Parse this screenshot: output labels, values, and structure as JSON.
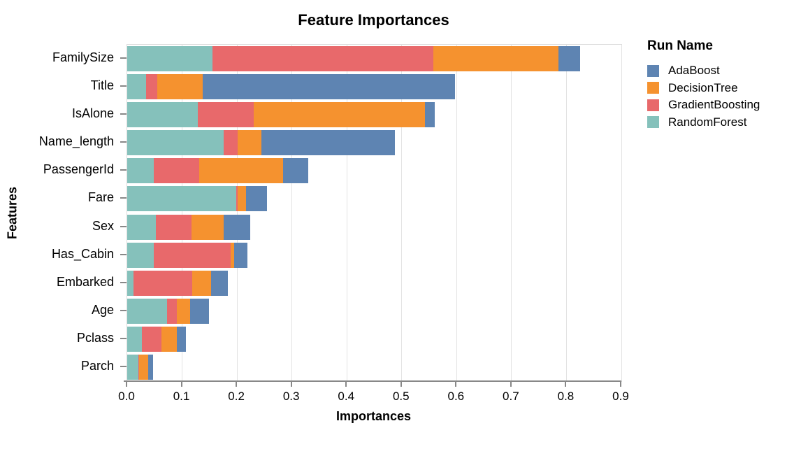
{
  "title": "Feature Importances",
  "x_axis": {
    "label": "Importances",
    "tick_labels": [
      "0.0",
      "0.1",
      "0.2",
      "0.3",
      "0.4",
      "0.5",
      "0.6",
      "0.7",
      "0.8",
      "0.9"
    ],
    "min": 0.0,
    "max": 0.9
  },
  "y_axis": {
    "label": "Features"
  },
  "legend": {
    "title": "Run Name",
    "entries": [
      {
        "label": "AdaBoost",
        "color": "#5e84b2"
      },
      {
        "label": "DecisionTree",
        "color": "#f5922f"
      },
      {
        "label": "GradientBoosting",
        "color": "#e8696b"
      },
      {
        "label": "RandomForest",
        "color": "#85c1bb"
      }
    ]
  },
  "colors": {
    "AdaBoost": "#5e84b2",
    "DecisionTree": "#f5922f",
    "GradientBoosting": "#e8696b",
    "RandomForest": "#85c1bb",
    "gridline": "#e3e3e3",
    "axis_line": "#888888",
    "plot_border": "#dddddd"
  },
  "chart_data": {
    "type": "bar",
    "orientation": "horizontal",
    "stacked": true,
    "title": "Feature Importances",
    "xlabel": "Importances",
    "ylabel": "Features",
    "xlim": [
      0.0,
      0.9
    ],
    "grid": true,
    "legend_position": "right",
    "legend_title": "Run Name",
    "categories": [
      "FamilySize",
      "Title",
      "IsAlone",
      "Name_length",
      "PassengerId",
      "Fare",
      "Sex",
      "Has_Cabin",
      "Embarked",
      "Age",
      "Pclass",
      "Parch"
    ],
    "stack_order_note": "segments drawn left-to-right: RandomForest, GradientBoosting, DecisionTree, AdaBoost",
    "series": [
      {
        "name": "RandomForest",
        "color": "#85c1bb",
        "values": [
          0.155,
          0.035,
          0.129,
          0.176,
          0.049,
          0.199,
          0.052,
          0.049,
          0.012,
          0.072,
          0.027,
          0.02
        ]
      },
      {
        "name": "GradientBoosting",
        "color": "#e8696b",
        "values": [
          0.402,
          0.02,
          0.102,
          0.025,
          0.082,
          0.002,
          0.065,
          0.139,
          0.107,
          0.019,
          0.035,
          0.002
        ]
      },
      {
        "name": "DecisionTree",
        "color": "#f5922f",
        "values": [
          0.229,
          0.083,
          0.311,
          0.043,
          0.153,
          0.016,
          0.059,
          0.007,
          0.034,
          0.023,
          0.029,
          0.016
        ]
      },
      {
        "name": "AdaBoost",
        "color": "#5e84b2",
        "values": [
          0.039,
          0.459,
          0.018,
          0.243,
          0.046,
          0.037,
          0.048,
          0.024,
          0.03,
          0.035,
          0.016,
          0.009
        ]
      }
    ],
    "totals": [
      0.825,
      0.597,
      0.56,
      0.487,
      0.33,
      0.254,
      0.224,
      0.219,
      0.183,
      0.149,
      0.107,
      0.047
    ]
  }
}
